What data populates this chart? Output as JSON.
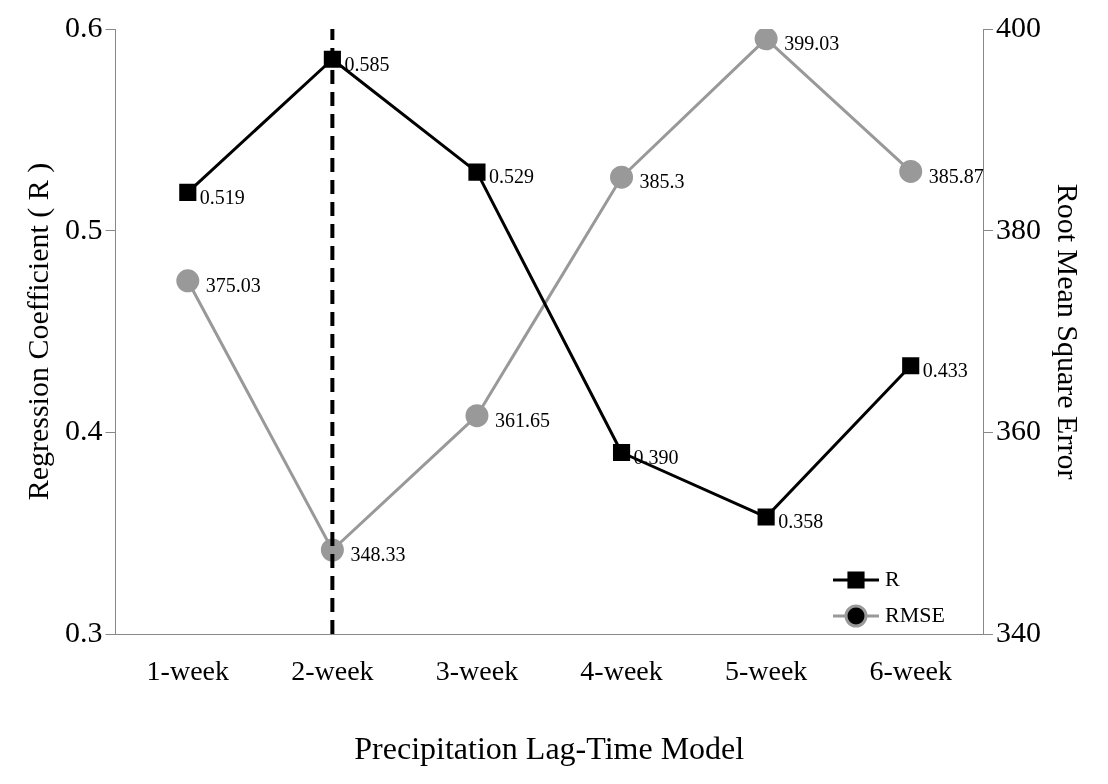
{
  "chart_data": {
    "type": "line",
    "xlabel": "Precipitation Lag-Time Model",
    "ylabel": "Regression Coefficient ( R )",
    "y2label": "Root Mean Square Error",
    "categories": [
      "1-week",
      "2-week",
      "3-week",
      "4-week",
      "5-week",
      "6-week"
    ],
    "series": [
      {
        "name": "R",
        "color": "#000000",
        "marker": "square",
        "values": [
          0.519,
          0.585,
          0.529,
          0.39,
          0.358,
          0.433
        ],
        "value_labels": [
          "0.519",
          "0.585",
          "0.529",
          "0.390",
          "0.358",
          "0.433"
        ]
      },
      {
        "name": "RMSE",
        "color": "#999999",
        "marker": "circle",
        "axis": "y2",
        "values": [
          375.03,
          348.33,
          361.65,
          385.3,
          399.03,
          385.87
        ],
        "value_labels": [
          "375.03",
          "348.33",
          "361.65",
          "385.3",
          "399.03",
          "385.87"
        ]
      }
    ],
    "ylim": [
      0.3,
      0.6
    ],
    "yticks": [
      0.3,
      0.4,
      0.5,
      0.6
    ],
    "y2lim": [
      340,
      400
    ],
    "y2ticks": [
      340,
      360,
      380,
      400
    ],
    "ref_lines": [
      {
        "axis": "x",
        "value": "2-week",
        "color": "#000000",
        "line_style": "dashed"
      }
    ],
    "grid": false,
    "legend": "bottom right"
  }
}
